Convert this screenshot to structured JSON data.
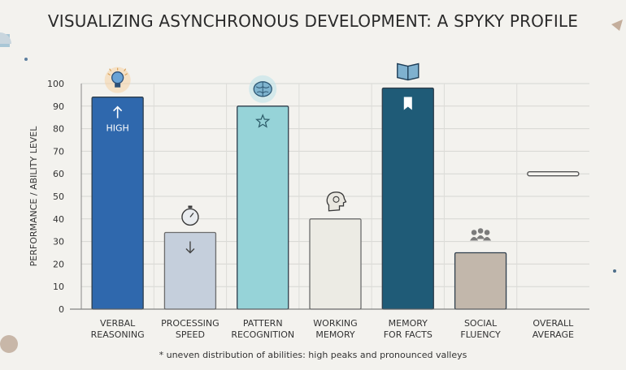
{
  "title": "VISUALIZING ASYNCHRONOUS DEVELOPMENT: A SPYKY PROFILE",
  "note": "* uneven distribution of abilities: high peaks and pronounced valleys",
  "chart_data": {
    "type": "bar",
    "title": "VISUALIZING ASYNCHRONOUS DEVELOPMENT: A SPYKY PROFILE",
    "ylabel": "PERFORMANCE / ABILITY LEVEL",
    "xlabel": "",
    "ylim": [
      0,
      100
    ],
    "yticks": [
      0,
      10,
      20,
      30,
      40,
      50,
      60,
      70,
      80,
      90,
      100
    ],
    "grid": true,
    "categories": [
      [
        "VERBAL",
        "REASONING"
      ],
      [
        "PROCESSING",
        "SPEED"
      ],
      [
        "PATTERN",
        "RECOGNITION"
      ],
      [
        "WORKING",
        "MEMORY"
      ],
      [
        "MEMORY",
        "FOR FACTS"
      ],
      [
        "SOCIAL",
        "FLUENCY"
      ],
      [
        "OVERALL",
        "AVERAGE"
      ]
    ],
    "values": [
      94,
      34,
      90,
      40,
      98,
      25,
      60
    ],
    "mark_types": [
      "bar",
      "bar",
      "bar",
      "bar",
      "bar",
      "bar",
      "line"
    ],
    "colors": [
      "#2f68ad",
      "#c5cfdc",
      "#96d3d8",
      "#ecebe4",
      "#1f5b77",
      "#c2b7ab",
      "#555555"
    ],
    "icons": [
      "lightbulb-icon",
      "stopwatch-icon",
      "brain-icon",
      "head-gears-icon",
      "book-icon",
      "people-icon",
      null
    ],
    "bar_glyphs": [
      "arrow-up-icon",
      "arrow-down-icon",
      "star-icon",
      null,
      "bookmark-icon",
      null,
      null
    ],
    "bar_labels": [
      "HIGH",
      "",
      "",
      "",
      "",
      "",
      ""
    ]
  }
}
